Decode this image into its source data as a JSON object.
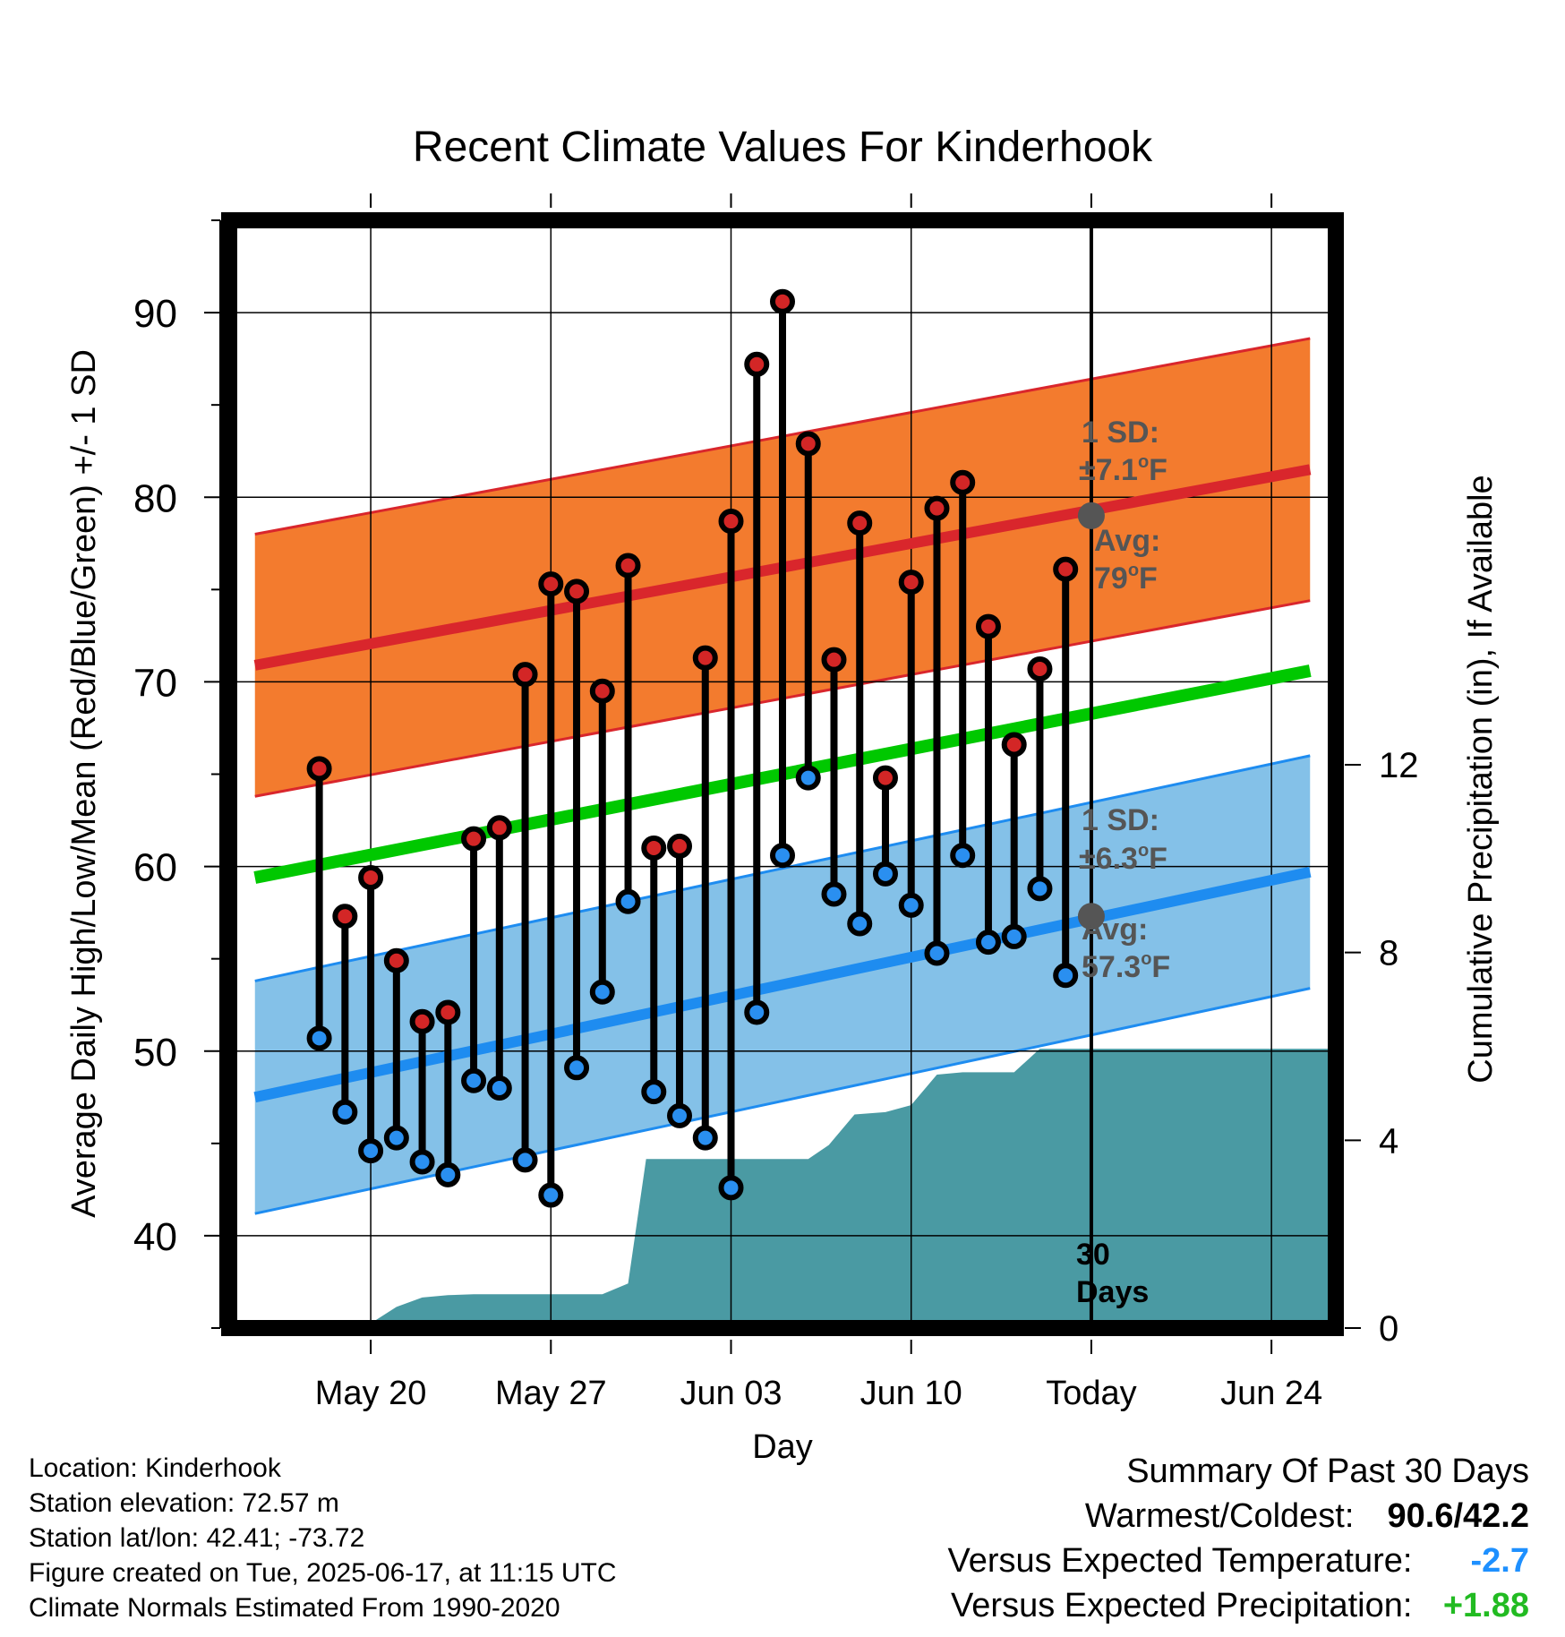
{
  "chart_data": {
    "type": "line",
    "title": "Recent Climate Values For Kinderhook",
    "xlabel": "Day",
    "ylabel": "Average Daily High/Low/Mean (Red/Blue/Green) +/- 1 SD",
    "y2label": "Cumulative Precipitation (in), If Available",
    "x_tick_labels": [
      "May 20",
      "May 27",
      "Jun 03",
      "Jun 10",
      "Today",
      "Jun 24"
    ],
    "ylim": [
      35,
      95
    ],
    "y_ticks": [
      40,
      50,
      60,
      70,
      80,
      90
    ],
    "y2lim": [
      0,
      23.6
    ],
    "y2_ticks": [
      0,
      4,
      8,
      12
    ],
    "x_day_range": [
      -33.5,
      9.5
    ],
    "tick_days": [
      -28,
      -21,
      -14,
      -7,
      0,
      7
    ],
    "grid": true,
    "daily_high": [
      65.3,
      57.3,
      59.4,
      54.9,
      51.6,
      52.1,
      61.5,
      62.1,
      70.4,
      75.3,
      74.9,
      69.5,
      76.3,
      61.0,
      61.1,
      71.3,
      78.7,
      87.2,
      90.6,
      82.9,
      71.2,
      78.6,
      64.8,
      75.4,
      79.4,
      80.8,
      73.0,
      66.6,
      70.7,
      76.1
    ],
    "daily_low": [
      50.7,
      46.7,
      44.6,
      45.3,
      44.0,
      43.3,
      48.4,
      48.0,
      44.1,
      42.2,
      49.1,
      53.2,
      58.1,
      47.8,
      46.5,
      45.3,
      42.6,
      52.1,
      60.6,
      64.8,
      58.5,
      56.9,
      59.6,
      57.9,
      55.3,
      60.6,
      55.9,
      56.2,
      58.8,
      54.1
    ],
    "normal_high": [
      70.9,
      81.5
    ],
    "normal_low": [
      47.5,
      59.7
    ],
    "normal_mean": [
      59.4,
      70.6
    ],
    "high_sd": 7.1,
    "low_sd": 6.3,
    "cumulative_precip": [
      [
        -29.5,
        0
      ],
      [
        -28.5,
        0
      ],
      [
        -28,
        0.1
      ],
      [
        -27,
        0.45
      ],
      [
        -26,
        0.65
      ],
      [
        -25,
        0.7
      ],
      [
        -24,
        0.72
      ],
      [
        -22,
        0.72
      ],
      [
        -20,
        0.72
      ],
      [
        -19,
        0.72
      ],
      [
        -18,
        0.95
      ],
      [
        -17.3,
        3.6
      ],
      [
        -16,
        3.6
      ],
      [
        -15,
        3.6
      ],
      [
        -14,
        3.6
      ],
      [
        -13,
        3.6
      ],
      [
        -12,
        3.6
      ],
      [
        -11,
        3.6
      ],
      [
        -10.2,
        3.9
      ],
      [
        -9.2,
        4.55
      ],
      [
        -8,
        4.6
      ],
      [
        -7,
        4.75
      ],
      [
        -6,
        5.4
      ],
      [
        -5,
        5.45
      ],
      [
        -4,
        5.45
      ],
      [
        -3,
        5.45
      ],
      [
        -2,
        5.95
      ],
      [
        9.5,
        5.95
      ]
    ],
    "annotations": {
      "high_sd_line1": "1 SD:",
      "high_sd_line2": "±7.1",
      "high_sd_unit": "F",
      "high_avg_line1": "Avg:",
      "high_avg_line2": "79",
      "high_avg_unit": "F",
      "low_sd_line1": "1 SD:",
      "low_sd_line2": "±6.3",
      "low_sd_unit": "F",
      "low_avg_line1": "Avg:",
      "low_avg_line2": "57.3",
      "low_avg_unit": "F",
      "degree": "o",
      "days_count": "30",
      "days_word": "Days"
    },
    "today_high_normal": 79,
    "today_low_normal": 57.3,
    "colors": {
      "high_band": "#f37b2e",
      "high_line": "#d9262c",
      "low_band": "#84c1e8",
      "low_line": "#1e8cf0",
      "mean_line": "#00c800",
      "precip": "#4a9aa3",
      "high_marker": "#d32626",
      "low_marker": "#2a8ff0",
      "today_marker": "#555555",
      "annotation_text": "#555555"
    }
  },
  "info": {
    "location": "Location: Kinderhook",
    "elevation": "Station elevation: 72.57 m",
    "latlon": "Station lat/lon: 42.41; -73.72",
    "created": "Figure created on Tue, 2025-06-17, at 11:15 UTC",
    "normals": "Climate Normals Estimated From 1990-2020"
  },
  "summary": {
    "heading": "Summary Of Past 30 Days",
    "warm_cold_label": "Warmest/Coldest:",
    "warm_cold_value": "90.6/42.2",
    "temp_label": "Versus Expected Temperature:",
    "temp_value": "-2.7",
    "precip_label": "Versus Expected Precipitation:",
    "precip_value": "+1.88"
  }
}
